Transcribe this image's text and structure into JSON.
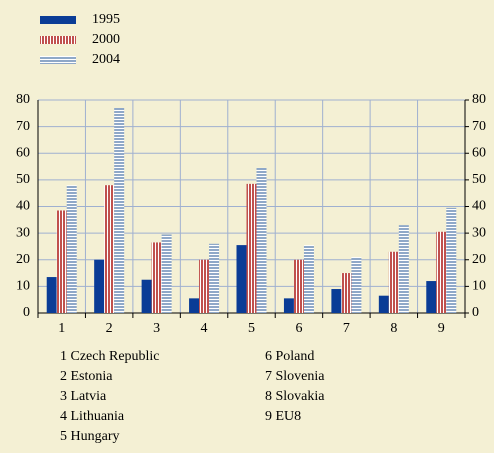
{
  "chart_data": {
    "type": "bar",
    "categories": [
      "1",
      "2",
      "3",
      "4",
      "5",
      "6",
      "7",
      "8",
      "9"
    ],
    "series": [
      {
        "name": "1995",
        "color": "#0a3c96",
        "pattern": "solid",
        "values": [
          13.5,
          20,
          12.5,
          5.5,
          25.5,
          5.5,
          9,
          6.5,
          12
        ]
      },
      {
        "name": "2000",
        "color": "#c0504d",
        "pattern": "vertical-stripes",
        "values": [
          38.5,
          48,
          26.5,
          20,
          48.5,
          20,
          15,
          23,
          30.5
        ]
      },
      {
        "name": "2004",
        "color": "#8fa8c8",
        "pattern": "horizontal-stripes",
        "values": [
          48,
          77,
          29.5,
          26,
          54.5,
          25.5,
          21,
          33,
          39.5
        ]
      }
    ],
    "ylim": [
      0,
      80
    ],
    "yticks": [
      0,
      10,
      20,
      30,
      40,
      50,
      60,
      70,
      80
    ],
    "y2lim": [
      0,
      80
    ],
    "y2ticks": [
      0,
      10,
      20,
      30,
      40,
      50,
      60,
      70,
      80
    ],
    "grid": true,
    "legend": "top-left",
    "annotations": [
      "1 Czech Republic",
      "2 Estonia",
      "3 Latvia",
      "4 Lithuania",
      "5 Hungary",
      "6 Poland",
      "7 Slovenia",
      "8 Slovakia",
      "9 EU8"
    ]
  }
}
